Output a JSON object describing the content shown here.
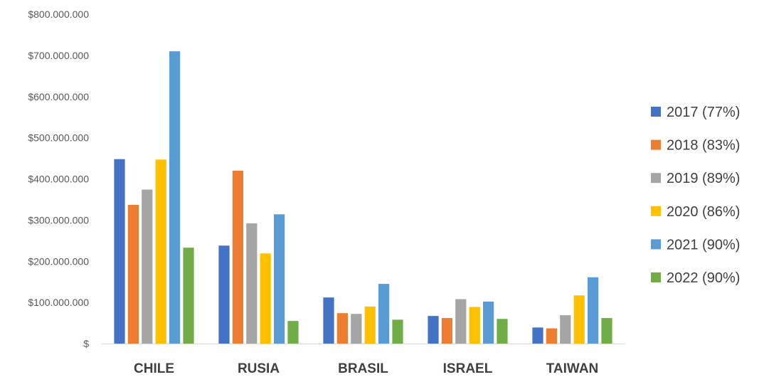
{
  "chart_data": {
    "type": "bar",
    "categories": [
      "CHILE",
      "RUSIA",
      "BRASIL",
      "ISRAEL",
      "TAIWAN"
    ],
    "series": [
      {
        "name": "2017 (77%)",
        "color": "#4472C4",
        "values": [
          448000000,
          238000000,
          112000000,
          67000000,
          39000000
        ]
      },
      {
        "name": "2018 (83%)",
        "color": "#ED7D31",
        "values": [
          337000000,
          420000000,
          74000000,
          62000000,
          37000000
        ]
      },
      {
        "name": "2019 (89%)",
        "color": "#A5A5A5",
        "values": [
          374000000,
          292000000,
          72000000,
          108000000,
          69000000
        ]
      },
      {
        "name": "2020 (86%)",
        "color": "#FFC000",
        "values": [
          447000000,
          219000000,
          90000000,
          89000000,
          117000000
        ]
      },
      {
        "name": "2021 (90%)",
        "color": "#5B9BD5",
        "values": [
          710000000,
          314000000,
          145000000,
          102000000,
          161000000
        ]
      },
      {
        "name": "2022 (90%)",
        "color": "#70AD47",
        "values": [
          233000000,
          55000000,
          58000000,
          60000000,
          62000000
        ]
      }
    ],
    "ylim": [
      0,
      800000000
    ],
    "yticks": [
      0,
      100000000,
      200000000,
      300000000,
      400000000,
      500000000,
      600000000,
      700000000,
      800000000
    ],
    "ytick_labels": [
      "$",
      "$100.000.000",
      "$200.000.000",
      "$300.000.000",
      "$400.000.000",
      "$500.000.000",
      "$600.000.000",
      "$700.000.000",
      "$800.000.000"
    ],
    "title": "",
    "xlabel": "",
    "ylabel": "",
    "grid": false,
    "legend_position": "right"
  }
}
